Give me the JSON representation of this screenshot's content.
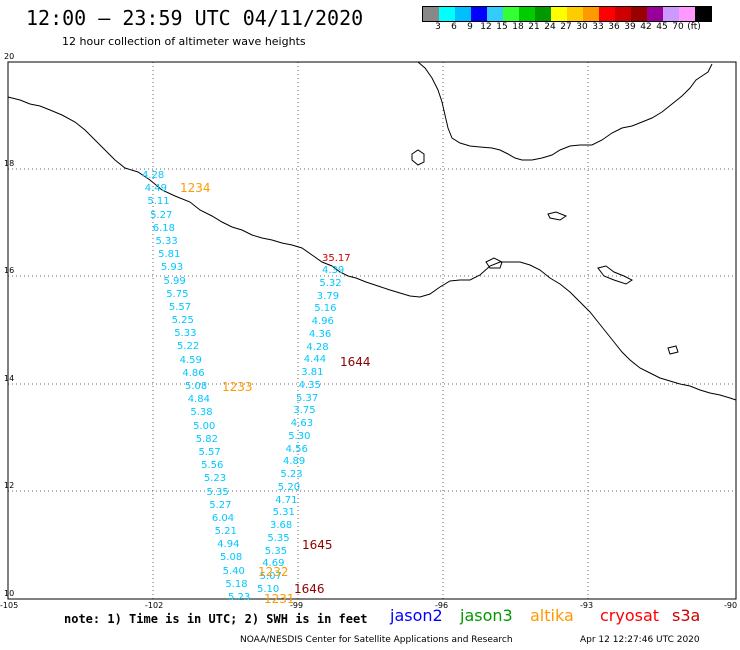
{
  "title": "12:00 – 23:59 UTC 04/11/2020",
  "subtitle": "12 hour collection of altimeter wave heights",
  "colorbar": {
    "colors": [
      "#888888",
      "#00ffff",
      "#00bfff",
      "#0000ff",
      "#33ccff",
      "#33ff33",
      "#00cc00",
      "#009900",
      "#ffff00",
      "#ffcc00",
      "#ff9900",
      "#ff0000",
      "#cc0000",
      "#990000",
      "#990099",
      "#cc99ff",
      "#ff99ff",
      "#000000"
    ],
    "labels": [
      "3",
      "6",
      "9",
      "12",
      "15",
      "18",
      "21",
      "24",
      "27",
      "30",
      "33",
      "36",
      "39",
      "42",
      "45",
      "70",
      "(ft)"
    ]
  },
  "axes": {
    "lon_labels": [
      "-105",
      "-102",
      "-99",
      "-96",
      "-93",
      "-90"
    ],
    "lat_labels": [
      "20",
      "18",
      "16",
      "14",
      "12",
      "10"
    ]
  },
  "tracks": {
    "track_a": {
      "color": "#00c8ff",
      "values": [
        "4.28",
        "4.49",
        "5.11",
        "5.27",
        "6.18",
        "5.33",
        "5.81",
        "5.93",
        "5.99",
        "5.75",
        "5.57",
        "5.25",
        "5.33",
        "5.22",
        "4.59",
        "4.86",
        "5.08",
        "4.84",
        "5.38",
        "5.00",
        "5.82",
        "5.57",
        "5.56",
        "5.23",
        "5.35",
        "5.27",
        "6.04",
        "5.21",
        "4.94",
        "5.08",
        "5.40",
        "5.18",
        "5.23"
      ]
    },
    "track_b": {
      "color": "#00c8ff",
      "values": [
        "4.39",
        "5.32",
        "3.79",
        "5.16",
        "4.96",
        "4.36",
        "4.28",
        "4.44",
        "3.81",
        "4.35",
        "5.37",
        "3.75",
        "4.63",
        "5.30",
        "4.56",
        "4.89",
        "5.23",
        "5.20",
        "4.71",
        "5.31",
        "3.68",
        "5.35",
        "5.35",
        "4.69",
        "5.07",
        "5.10"
      ]
    },
    "track_b_top_value": "35.17",
    "track_b_top_color": "#cc0000"
  },
  "pass_labels": [
    {
      "text": "1234",
      "color": "#ff9900"
    },
    {
      "text": "1233",
      "color": "#ff9900"
    },
    {
      "text": "1232",
      "color": "#ff9900"
    },
    {
      "text": "1231",
      "color": "#ff9900"
    },
    {
      "text": "1644",
      "color": "#8b0000"
    },
    {
      "text": "1645",
      "color": "#8b0000"
    },
    {
      "text": "1646",
      "color": "#8b0000"
    }
  ],
  "note": "note: 1) Time is in UTC; 2) SWH is in feet",
  "legend": [
    {
      "text": "jason2",
      "color": "#0000ff"
    },
    {
      "text": "jason3",
      "color": "#009900"
    },
    {
      "text": "altika",
      "color": "#ff9900"
    },
    {
      "text": "cryosat",
      "color": "#ff0000"
    },
    {
      "text": "s3a",
      "color": "#cc0000"
    }
  ],
  "credit": "NOAA/NESDIS Center for Satellite Applications and Research",
  "timestamp": "Apr 12 12:27:46 UTC 2020"
}
